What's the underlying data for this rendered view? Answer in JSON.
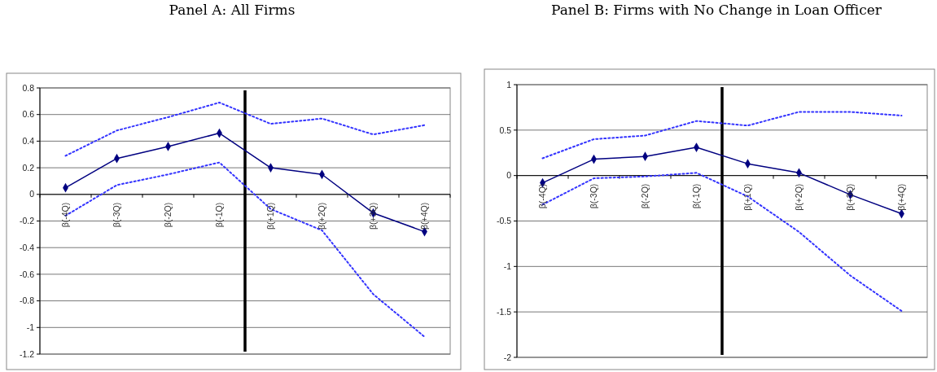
{
  "chart_data": [
    {
      "type": "line",
      "title": "Panel A: All Firms",
      "categories": [
        "β(-4Q)",
        "β(-3Q)",
        "β(-2Q)",
        "β(-1Q)",
        "β(+1Q)",
        "β(+2Q)",
        "β(+3Q)",
        "β(+4Q)"
      ],
      "ylim": [
        -1.2,
        0.8
      ],
      "yticks": [
        0.8,
        0.6,
        0.4,
        0.2,
        0,
        {
          "value": -0.2,
          "label": "-0.2"
        },
        {
          "value": -0.4,
          "label": "-0.4"
        },
        {
          "value": -0.6,
          "label": "-0.6"
        },
        {
          "value": -0.8,
          "label": "-0.8"
        },
        -1,
        {
          "value": -1.2,
          "label": "-1.2"
        }
      ],
      "grid": "y",
      "series": [
        {
          "color": "#3333ff",
          "line_style": "dotted",
          "marker": "none",
          "values": [
            0.29,
            0.48,
            0.58,
            0.69,
            0.53,
            0.57,
            0.45,
            0.52
          ]
        },
        {
          "color": "#000080",
          "line_style": "solid",
          "marker": "diamond",
          "values": [
            0.05,
            0.27,
            0.36,
            0.46,
            0.2,
            0.15,
            -0.14,
            -0.28
          ]
        },
        {
          "color": "#3333ff",
          "line_style": "dotted",
          "marker": "none",
          "values": [
            -0.16,
            0.07,
            0.15,
            0.24,
            -0.11,
            -0.27,
            -0.75,
            -1.07
          ]
        }
      ]
    },
    {
      "type": "line",
      "title": "Panel B: Firms with No Change in Loan Officer",
      "categories": [
        "β(-4Q)",
        "β(-3Q)",
        "β(-2Q)",
        "β(-1Q)",
        "β(+1Q)",
        "β(+2Q)",
        "β(+3Q)",
        "β(+4Q)"
      ],
      "ylim": [
        -2,
        1
      ],
      "yticks": [
        1,
        0.5,
        0,
        -0.5,
        -1,
        -1.5,
        -2
      ],
      "grid": "y",
      "series": [
        {
          "color": "#3333ff",
          "line_style": "dotted",
          "marker": "none",
          "values": [
            0.19,
            0.4,
            0.44,
            0.6,
            0.55,
            0.7,
            0.7,
            0.66
          ]
        },
        {
          "color": "#000080",
          "line_style": "solid",
          "marker": "diamond",
          "values": [
            -0.08,
            0.18,
            0.21,
            0.31,
            0.13,
            0.03,
            -0.21,
            -0.42
          ]
        },
        {
          "color": "#3333ff",
          "line_style": "dotted",
          "marker": "none",
          "values": [
            -0.32,
            -0.03,
            -0.01,
            0.03,
            -0.23,
            -0.62,
            -1.1,
            -1.49
          ]
        }
      ]
    }
  ]
}
